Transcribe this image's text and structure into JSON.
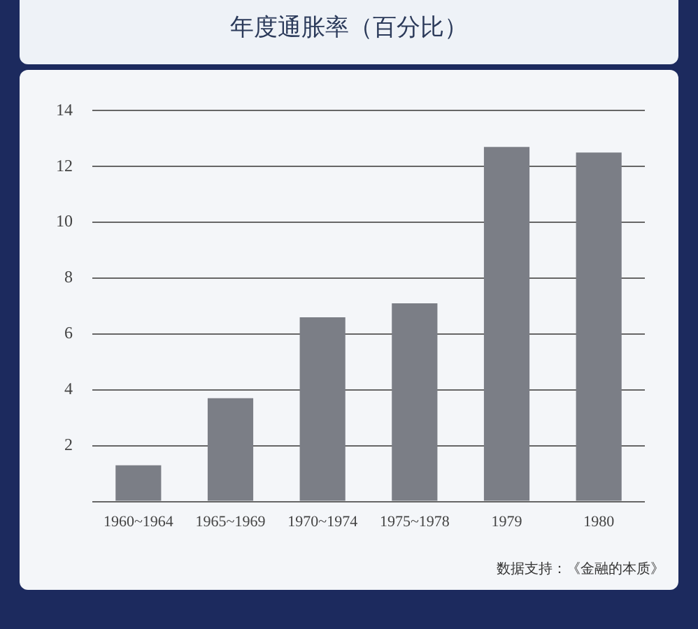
{
  "chart_data": {
    "type": "bar",
    "title": "年度通胀率（百分比）",
    "categories": [
      "1960~1964",
      "1965~1969",
      "1970~1974",
      "1975~1978",
      "1979",
      "1980"
    ],
    "values": [
      1.3,
      3.7,
      6.6,
      7.1,
      12.7,
      12.5
    ],
    "color": "#7b7e86",
    "ylim": [
      0,
      14
    ],
    "yticks": [
      {
        "value": 0,
        "label": null
      },
      2,
      4,
      6,
      8,
      10,
      12,
      14
    ],
    "grid": "y",
    "annotations": [
      "数据支持：《金融的本质》"
    ]
  }
}
